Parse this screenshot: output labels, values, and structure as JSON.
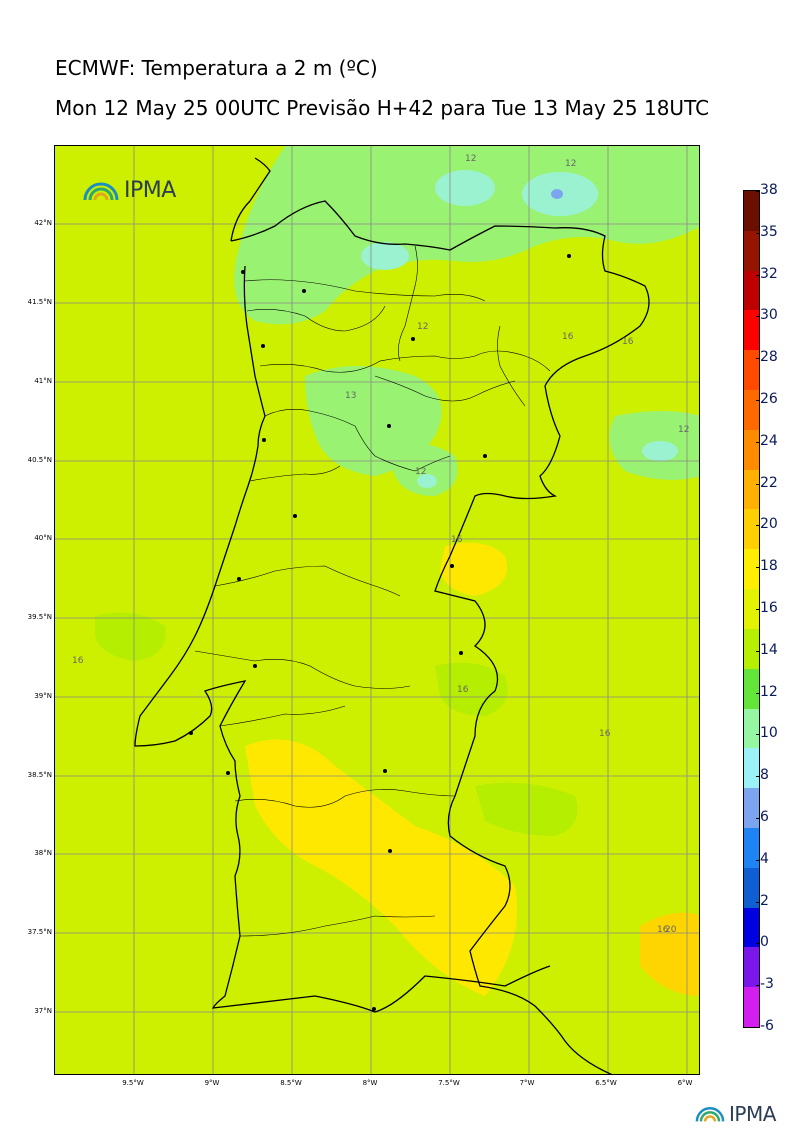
{
  "title": {
    "line1": "ECMWF: Temperatura a 2 m (ºC)",
    "line2": "Mon 12 May 25 00UTC Previsão H+42 para Tue 13 May 25 18UTC"
  },
  "logo": {
    "text": "IPMA"
  },
  "axes": {
    "lat_labels": [
      "42°N",
      "41.5°N",
      "41°N",
      "40.5°N",
      "40°N",
      "39.5°N",
      "39°N",
      "38.5°N",
      "38°N",
      "37.5°N",
      "37°N"
    ],
    "lon_labels": [
      "9.5°W",
      "9°W",
      "8.5°W",
      "8°W",
      "7.5°W",
      "7°W",
      "6.5°W",
      "6°W"
    ]
  },
  "colorbar": {
    "ticks": [
      "38",
      "35",
      "32",
      "30",
      "28",
      "26",
      "24",
      "22",
      "20",
      "18",
      "16",
      "14",
      "12",
      "10",
      "8",
      "6",
      "4",
      "2",
      "0",
      "-3",
      "-6"
    ],
    "colors": [
      "#6b0f02",
      "#961500",
      "#bd0000",
      "#ff0000",
      "#ff4a00",
      "#ff6a00",
      "#ff8c00",
      "#ffb000",
      "#ffd000",
      "#ffee00",
      "#e3f200",
      "#b7ef00",
      "#64e53a",
      "#96f7a3",
      "#9af2f7",
      "#7da5ef",
      "#1f84f3",
      "#0f5fd2",
      "#0000e0",
      "#7a18ec",
      "#d21ff0"
    ]
  },
  "contour_labels": [
    "12",
    "12",
    "12",
    "16",
    "16",
    "13",
    "12",
    "12",
    "16",
    "16",
    "16",
    "16",
    "16",
    "20"
  ],
  "colors": {
    "base_field": "#ccf000",
    "warm_field": "#ffe800",
    "cool_field": "#9af272",
    "cold_field": "#9af2d0"
  }
}
